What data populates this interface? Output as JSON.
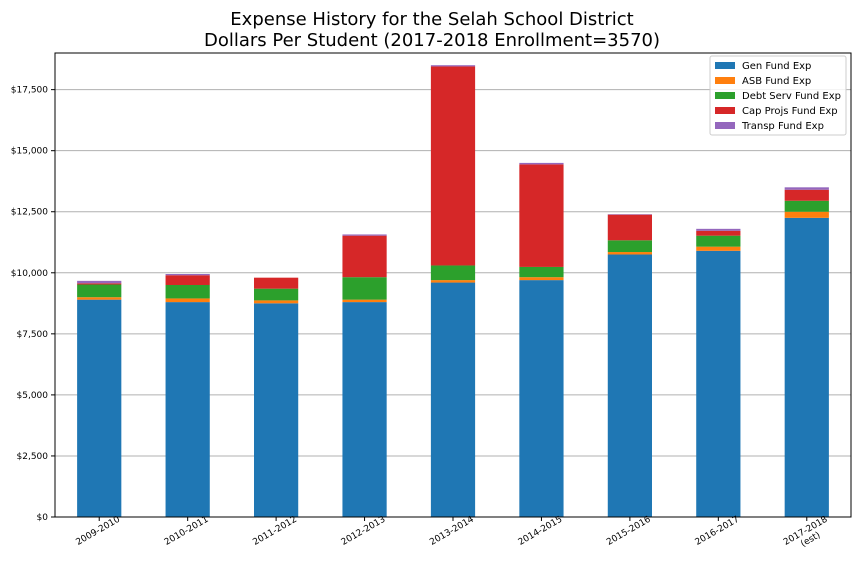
{
  "chart_data": {
    "type": "bar",
    "stacked": true,
    "title": "Expense History for the Selah School District",
    "subtitle": "Dollars Per Student (2017-2018 Enrollment=3570)",
    "xlabel": "",
    "ylabel": "",
    "categories": [
      "2009-2010",
      "2010-2011",
      "2011-2012",
      "2012-2013",
      "2013-2014",
      "2014-2015",
      "2015-2016",
      "2016-2017",
      "2017-2018\n(est)"
    ],
    "series": [
      {
        "name": "Gen Fund Exp",
        "color": "#1f77b4",
        "values": [
          8900,
          8800,
          8750,
          8800,
          9600,
          9700,
          10750,
          10900,
          12250
        ]
      },
      {
        "name": "ASB Fund Exp",
        "color": "#ff7f0e",
        "values": [
          100,
          150,
          120,
          100,
          100,
          120,
          100,
          170,
          250
        ]
      },
      {
        "name": "Debt Serv Fund Exp",
        "color": "#2ca02c",
        "values": [
          520,
          550,
          480,
          920,
          600,
          420,
          480,
          450,
          450
        ]
      },
      {
        "name": "Cap Projs Fund Exp",
        "color": "#d62728",
        "values": [
          50,
          400,
          450,
          1700,
          8150,
          4200,
          1050,
          200,
          450
        ]
      },
      {
        "name": "Transp Fund Exp",
        "color": "#9467bd",
        "values": [
          100,
          50,
          0,
          50,
          50,
          60,
          20,
          80,
          100
        ]
      }
    ],
    "ylim": [
      0,
      19000
    ],
    "yticks": [
      0,
      2500,
      5000,
      7500,
      10000,
      12500,
      15000,
      17500
    ],
    "ytick_labels": [
      "$0",
      "$2,500",
      "$5,000",
      "$7,500",
      "$10,000",
      "$12,500",
      "$15,000",
      "$17,500"
    ],
    "grid": "horizontal",
    "legend": "top-right"
  }
}
